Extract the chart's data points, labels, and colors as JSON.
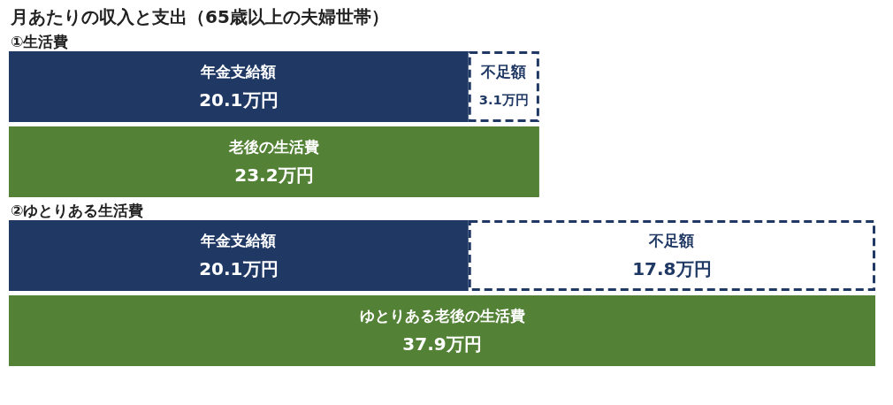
{
  "chart_data": [
    {
      "type": "bar",
      "title": "月あたりの収入と支出（65歳以上の夫婦世帯）",
      "subtitle": "①生活費",
      "orientation": "horizontal",
      "stacked": true,
      "categories": [
        null,
        null
      ],
      "series": [
        {
          "name": "年金支給額",
          "color": "#1f3864",
          "values": [
            20.1,
            null
          ],
          "value_labels": [
            "20.1万円",
            null
          ]
        },
        {
          "name": "不足額",
          "color": "#ffffff",
          "line_style": "dashed",
          "values": [
            3.1,
            null
          ],
          "value_labels": [
            "3.1万円",
            null
          ]
        },
        {
          "name": "老後の生活費",
          "color": "#538135",
          "values": [
            null,
            23.2
          ],
          "value_labels": [
            null,
            "23.2万円"
          ]
        }
      ]
    },
    {
      "type": "bar",
      "title": "②ゆとりある生活費",
      "orientation": "horizontal",
      "stacked": true,
      "categories": [
        null,
        null
      ],
      "series": [
        {
          "name": "年金支給額",
          "color": "#1f3864",
          "values": [
            20.1,
            null
          ],
          "value_labels": [
            "20.1万円",
            null
          ]
        },
        {
          "name": "不足額",
          "color": "#ffffff",
          "line_style": "dashed",
          "values": [
            17.8,
            null
          ],
          "value_labels": [
            "17.8万円",
            null
          ]
        },
        {
          "name": "ゆとりある老後の生活費",
          "color": "#538135",
          "values": [
            null,
            37.9
          ],
          "value_labels": [
            null,
            "37.9万円"
          ]
        }
      ]
    }
  ]
}
